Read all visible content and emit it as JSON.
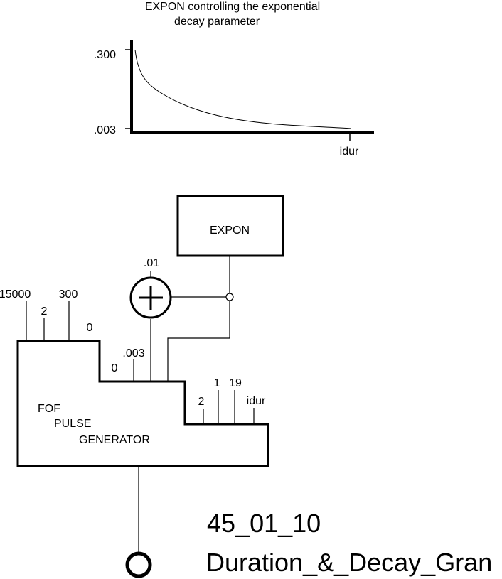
{
  "graph": {
    "title_line1": "EXPON controlling the exponential",
    "title_line2": "decay parameter",
    "y_top_label": ".300",
    "y_bottom_label": ".003",
    "x_end_label": "idur"
  },
  "diagram": {
    "expon_label": "EXPON",
    "adder_input_label": ".01",
    "fof_line1": "FOF",
    "fof_line2": "PULSE",
    "fof_line3": "GENERATOR",
    "inputs": {
      "i1": "15000",
      "i2": "2",
      "i3": "300",
      "i4": "0",
      "i5": "0",
      "i6": ".003",
      "i7": "2",
      "i8": "1",
      "i9": "19",
      "i10": "idur"
    }
  },
  "caption": {
    "number": "45_01_10",
    "title": "Duration_&_Decay_Gran"
  }
}
